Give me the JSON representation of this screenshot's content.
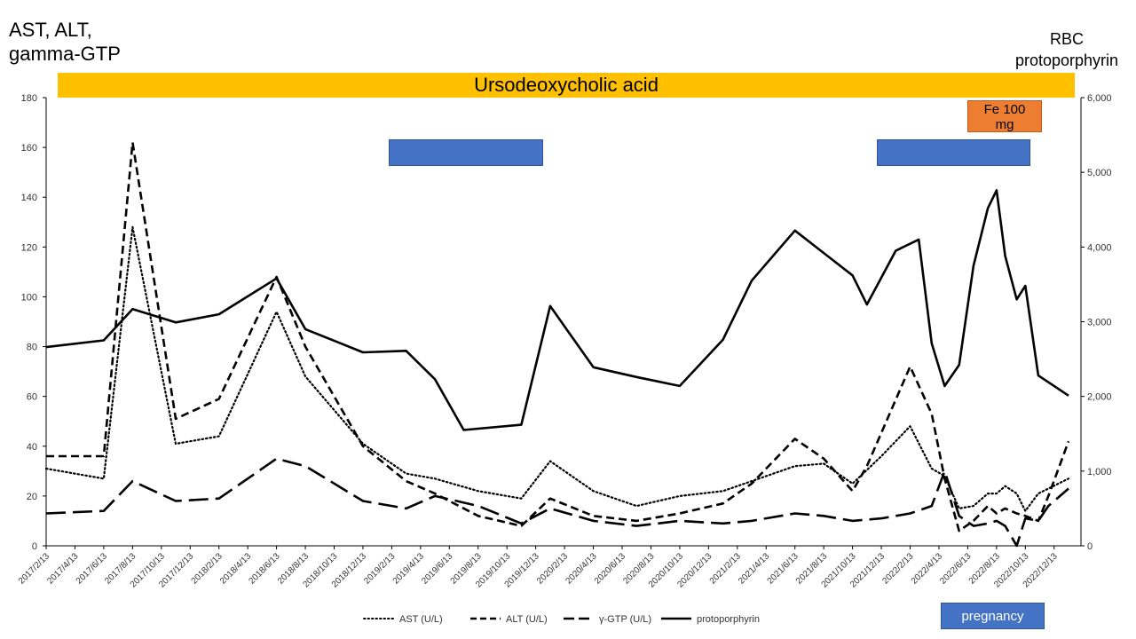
{
  "left_axis_title": "AST, ALT,\ngamma-GTP",
  "right_axis_title": "RBC\nprotoporphyrin",
  "annotations": {
    "udca": "Ursodeoxycholic acid",
    "fe": "Fe 100\nmg",
    "pregnancy": "pregnancy"
  },
  "colors": {
    "udca_bar": "#FFC000",
    "blue_bar": "#4472C4",
    "fe_box": "#ED7D31",
    "series_line": "#000000"
  },
  "chart_data": {
    "type": "line",
    "title": "",
    "x_label": "",
    "x_tick_labels": [
      "2017/2/13",
      "2017/4/13",
      "2017/6/13",
      "2017/8/13",
      "2017/10/13",
      "2017/12/13",
      "2018/2/13",
      "2018/4/13",
      "2018/6/13",
      "2018/8/13",
      "2018/10/13",
      "2018/12/13",
      "2019/2/13",
      "2019/4/13",
      "2019/6/13",
      "2019/8/13",
      "2019/10/13",
      "2019/12/13",
      "2020/2/13",
      "2020/4/13",
      "2020/6/13",
      "2020/8/13",
      "2020/10/13",
      "2020/12/13",
      "2021/2/13",
      "2021/4/13",
      "2021/6/13",
      "2021/8/13",
      "2021/10/13",
      "2021/12/13",
      "2022/2/13",
      "2022/4/13",
      "2022/6/13",
      "2022/8/13",
      "2022/10/13",
      "2022/12/13"
    ],
    "y_left": {
      "min": 0,
      "max": 180,
      "ticks": [
        "0",
        "20",
        "40",
        "60",
        "80",
        "100",
        "120",
        "140",
        "160",
        "180"
      ]
    },
    "y_right": {
      "min": 0,
      "max": 6000,
      "ticks": [
        "0",
        "1,000",
        "2,000",
        "3,000",
        "4,000",
        "5,000",
        "6,000"
      ]
    },
    "legend_position": "bottom",
    "series": [
      {
        "name": "AST (U/L)",
        "axis": "left",
        "style": "dotted",
        "points": [
          [
            "2017/2/13",
            31
          ],
          [
            "2017/6/13",
            27
          ],
          [
            "2017/8/13",
            128
          ],
          [
            "2017/11/13",
            41
          ],
          [
            "2018/2/13",
            44
          ],
          [
            "2018/6/13",
            94
          ],
          [
            "2018/8/13",
            68
          ],
          [
            "2018/12/13",
            41
          ],
          [
            "2019/3/13",
            29
          ],
          [
            "2019/5/13",
            27
          ],
          [
            "2019/8/13",
            22
          ],
          [
            "2019/11/13",
            19
          ],
          [
            "2020/1/13",
            34
          ],
          [
            "2020/4/13",
            22
          ],
          [
            "2020/7/13",
            16
          ],
          [
            "2020/10/13",
            20
          ],
          [
            "2021/1/13",
            22
          ],
          [
            "2021/3/13",
            26
          ],
          [
            "2021/6/13",
            32
          ],
          [
            "2021/8/13",
            33
          ],
          [
            "2021/10/13",
            25
          ],
          [
            "2021/12/13",
            36
          ],
          [
            "2022/2/13",
            48
          ],
          [
            "2022/3/28",
            31
          ],
          [
            "2022/4/25",
            28
          ],
          [
            "2022/5/25",
            15
          ],
          [
            "2022/6/25",
            16
          ],
          [
            "2022/7/25",
            21
          ],
          [
            "2022/8/13",
            21
          ],
          [
            "2022/9/1",
            24
          ],
          [
            "2022/9/25",
            21
          ],
          [
            "2022/10/13",
            14
          ],
          [
            "2022/11/10",
            21
          ],
          [
            "2022/12/1",
            23
          ],
          [
            "2023/1/13",
            27
          ]
        ]
      },
      {
        "name": "ALT (U/L)",
        "axis": "left",
        "style": "dashed",
        "points": [
          [
            "2017/2/13",
            36
          ],
          [
            "2017/6/13",
            36
          ],
          [
            "2017/8/13",
            162
          ],
          [
            "2017/11/13",
            51
          ],
          [
            "2018/2/13",
            59
          ],
          [
            "2018/6/13",
            108
          ],
          [
            "2018/8/13",
            80
          ],
          [
            "2018/12/13",
            40
          ],
          [
            "2019/3/13",
            26
          ],
          [
            "2019/5/13",
            21
          ],
          [
            "2019/8/13",
            12
          ],
          [
            "2019/11/13",
            8
          ],
          [
            "2020/1/13",
            19
          ],
          [
            "2020/4/13",
            12
          ],
          [
            "2020/7/13",
            10
          ],
          [
            "2020/10/13",
            13
          ],
          [
            "2021/1/13",
            17
          ],
          [
            "2021/3/13",
            25
          ],
          [
            "2021/6/13",
            43
          ],
          [
            "2021/8/13",
            35
          ],
          [
            "2021/10/13",
            22
          ],
          [
            "2021/11/13",
            32
          ],
          [
            "2022/2/13",
            72
          ],
          [
            "2022/3/28",
            53
          ],
          [
            "2022/4/25",
            27
          ],
          [
            "2022/5/25",
            6
          ],
          [
            "2022/6/25",
            10
          ],
          [
            "2022/7/25",
            16
          ],
          [
            "2022/8/13",
            13
          ],
          [
            "2022/9/1",
            15
          ],
          [
            "2022/9/25",
            13
          ],
          [
            "2022/10/13",
            12
          ],
          [
            "2022/11/10",
            10
          ],
          [
            "2022/12/1",
            20
          ],
          [
            "2023/1/13",
            42
          ]
        ]
      },
      {
        "name": "γ-GTP (U/L)",
        "axis": "left",
        "style": "longdash",
        "points": [
          [
            "2017/2/13",
            13
          ],
          [
            "2017/6/13",
            14
          ],
          [
            "2017/8/13",
            26
          ],
          [
            "2017/11/13",
            18
          ],
          [
            "2018/2/13",
            19
          ],
          [
            "2018/6/13",
            35
          ],
          [
            "2018/8/13",
            32
          ],
          [
            "2018/12/13",
            18
          ],
          [
            "2019/3/13",
            15
          ],
          [
            "2019/5/13",
            20
          ],
          [
            "2019/8/13",
            16
          ],
          [
            "2019/11/13",
            9
          ],
          [
            "2020/1/13",
            15
          ],
          [
            "2020/4/13",
            10
          ],
          [
            "2020/7/13",
            8
          ],
          [
            "2020/10/13",
            10
          ],
          [
            "2021/1/13",
            9
          ],
          [
            "2021/3/13",
            10
          ],
          [
            "2021/6/13",
            13
          ],
          [
            "2021/8/13",
            12
          ],
          [
            "2021/10/13",
            10
          ],
          [
            "2021/12/13",
            11
          ],
          [
            "2022/2/13",
            13
          ],
          [
            "2022/3/28",
            16
          ],
          [
            "2022/4/25",
            30
          ],
          [
            "2022/5/25",
            12
          ],
          [
            "2022/6/25",
            8
          ],
          [
            "2022/7/25",
            9
          ],
          [
            "2022/8/13",
            10
          ],
          [
            "2022/9/1",
            8
          ],
          [
            "2022/9/25",
            0
          ],
          [
            "2022/10/13",
            11
          ],
          [
            "2022/11/10",
            10
          ],
          [
            "2022/12/1",
            16
          ],
          [
            "2023/1/13",
            23
          ]
        ]
      },
      {
        "name": "protoporphyrin",
        "axis": "right",
        "style": "solid",
        "points": [
          [
            "2017/2/13",
            2660
          ],
          [
            "2017/6/13",
            2750
          ],
          [
            "2017/8/13",
            3170
          ],
          [
            "2017/11/13",
            2990
          ],
          [
            "2018/2/13",
            3100
          ],
          [
            "2018/6/13",
            3580
          ],
          [
            "2018/8/13",
            2900
          ],
          [
            "2018/12/13",
            2590
          ],
          [
            "2019/3/13",
            2610
          ],
          [
            "2019/5/13",
            2230
          ],
          [
            "2019/7/13",
            1550
          ],
          [
            "2019/11/13",
            1620
          ],
          [
            "2020/1/13",
            3210
          ],
          [
            "2020/4/13",
            2390
          ],
          [
            "2020/7/13",
            2260
          ],
          [
            "2020/10/13",
            2140
          ],
          [
            "2021/1/13",
            2760
          ],
          [
            "2021/3/13",
            3550
          ],
          [
            "2021/6/13",
            4220
          ],
          [
            "2021/8/13",
            3920
          ],
          [
            "2021/10/13",
            3620
          ],
          [
            "2021/11/13",
            3230
          ],
          [
            "2022/1/13",
            3950
          ],
          [
            "2022/3/1",
            4100
          ],
          [
            "2022/3/28",
            2710
          ],
          [
            "2022/4/25",
            2140
          ],
          [
            "2022/5/25",
            2420
          ],
          [
            "2022/6/25",
            3750
          ],
          [
            "2022/7/25",
            4520
          ],
          [
            "2022/8/13",
            4760
          ],
          [
            "2022/9/1",
            3880
          ],
          [
            "2022/9/25",
            3300
          ],
          [
            "2022/10/13",
            3480
          ],
          [
            "2022/11/10",
            2280
          ],
          [
            "2023/1/13",
            2010
          ]
        ]
      }
    ]
  }
}
